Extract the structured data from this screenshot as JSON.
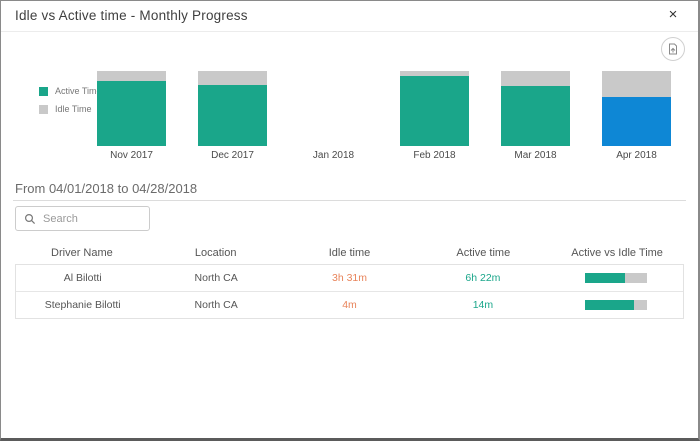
{
  "modal": {
    "title": "Idle vs Active time - Monthly Progress",
    "close_icon": "×"
  },
  "colors": {
    "active": "#1AA68A",
    "idle": "#C9C9C9",
    "selected": "#0E87D5",
    "idle_text": "#E8845B",
    "active_text": "#1AA68A"
  },
  "chart_data": {
    "type": "bar",
    "stacked_percent": true,
    "categories": [
      "Nov 2017",
      "Dec 2017",
      "Jan 2018",
      "Feb 2018",
      "Mar 2018",
      "Apr 2018"
    ],
    "series": [
      {
        "name": "Active Time",
        "values": [
          87,
          81,
          null,
          93,
          80,
          65
        ]
      },
      {
        "name": "Idle Time",
        "values": [
          13,
          19,
          null,
          7,
          20,
          35
        ]
      }
    ],
    "selected_category": "Apr 2018",
    "legend_position": "left",
    "ylim": [
      0,
      100
    ]
  },
  "period": {
    "label": "From 04/01/2018 to 04/28/2018"
  },
  "search": {
    "placeholder": "Search"
  },
  "table": {
    "columns": [
      "Driver Name",
      "Location",
      "Idle time",
      "Active time",
      "Active vs Idle Time"
    ],
    "rows": [
      {
        "driver": "Al Bilotti",
        "location": "North CA",
        "idle": "3h 31m",
        "active": "6h 22m",
        "active_pct": 64
      },
      {
        "driver": "Stephanie Bilotti",
        "location": "North CA",
        "idle": "4m",
        "active": "14m",
        "active_pct": 78
      }
    ]
  }
}
